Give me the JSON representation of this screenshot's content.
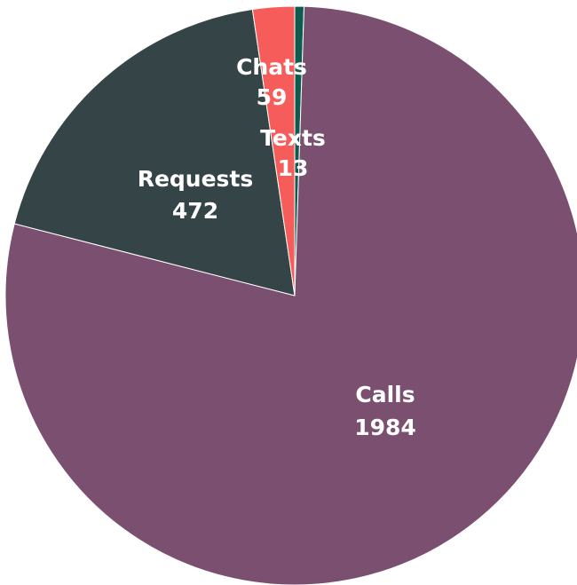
{
  "chart_data": {
    "type": "pie",
    "slices": [
      {
        "label": "Texts",
        "value": 13,
        "color": "#0d5c4f"
      },
      {
        "label": "Calls",
        "value": 1984,
        "color": "#7b4f70"
      },
      {
        "label": "Requests",
        "value": 472,
        "color": "#354447"
      },
      {
        "label": "Chats",
        "value": 59,
        "color": "#f65d5a"
      }
    ],
    "labels": {
      "texts": {
        "name": "Texts",
        "value": "13"
      },
      "calls": {
        "name": "Calls",
        "value": "1984"
      },
      "requests": {
        "name": "Requests",
        "value": "472"
      },
      "chats": {
        "name": "Chats",
        "value": "59"
      }
    },
    "start_angle": "12 o'clock",
    "direction": "clockwise",
    "legend": "none"
  }
}
